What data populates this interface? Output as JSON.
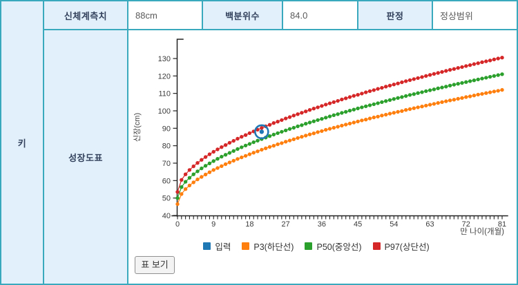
{
  "table": {
    "row_label": "키",
    "chart_row_label": "성장도표",
    "cells": [
      {
        "header": "신체계측치",
        "value": "88cm"
      },
      {
        "header": "백분위수",
        "value": "84.0"
      },
      {
        "header": "판정",
        "value": "정상범위"
      }
    ]
  },
  "button_label": "표 보기",
  "colors": {
    "table_border": "#39a9bd",
    "header_cell_bg": "#e1f0fb",
    "input_blue": "#1f77b4",
    "p3_orange": "#ff7f0e",
    "p50_green": "#2ca02c",
    "p97_red": "#d62728",
    "axis": "#222222",
    "tick_label": "#3a3a3a"
  },
  "chart_data": {
    "type": "scatter",
    "title": "",
    "xlabel": "만 나이(개월)",
    "ylabel": "신장(cm)",
    "xlim": [
      0,
      81
    ],
    "ylim": [
      40,
      135
    ],
    "x_major_ticks": [
      0,
      9,
      18,
      27,
      36,
      45,
      54,
      63,
      72,
      81
    ],
    "y_ticks": [
      40,
      50,
      60,
      70,
      80,
      90,
      100,
      110,
      120,
      130
    ],
    "grid": false,
    "legend_position": "bottom",
    "x": [
      0,
      1,
      2,
      3,
      4,
      5,
      6,
      7,
      8,
      9,
      10,
      11,
      12,
      13,
      14,
      15,
      16,
      17,
      18,
      19,
      20,
      21,
      22,
      23,
      24,
      25,
      26,
      27,
      28,
      29,
      30,
      31,
      32,
      33,
      34,
      35,
      36,
      37,
      38,
      39,
      40,
      41,
      42,
      43,
      44,
      45,
      46,
      47,
      48,
      49,
      50,
      51,
      52,
      53,
      54,
      55,
      56,
      57,
      58,
      59,
      60,
      61,
      62,
      63,
      64,
      65,
      66,
      67,
      68,
      69,
      70,
      71,
      72,
      73,
      74,
      75,
      76,
      77,
      78,
      79,
      80,
      81
    ],
    "series": [
      {
        "name": "입력",
        "color": "#1f77b4",
        "point": {
          "x": 21,
          "y": 88
        }
      },
      {
        "name": "P3(하단선)",
        "color": "#ff7f0e",
        "values": [
          46.5,
          52.3,
          55.1,
          57.2,
          59.0,
          60.7,
          62.1,
          63.5,
          64.8,
          66.1,
          67.2,
          68.3,
          69.4,
          70.4,
          71.4,
          72.4,
          73.3,
          74.2,
          75.1,
          76.0,
          76.8,
          77.7,
          78.5,
          79.3,
          80.0,
          80.8,
          81.5,
          82.3,
          83.0,
          83.7,
          84.4,
          85.1,
          85.8,
          86.5,
          87.1,
          87.8,
          88.4,
          89.1,
          89.7,
          90.3,
          90.9,
          91.5,
          92.1,
          92.7,
          93.3,
          93.9,
          94.5,
          95.0,
          95.6,
          96.2,
          96.7,
          97.3,
          97.8,
          98.4,
          98.9,
          99.4,
          99.9,
          100.5,
          101.0,
          101.5,
          102.0,
          102.5,
          103.0,
          103.5,
          104.0,
          104.5,
          105.0,
          105.5,
          106.0,
          106.4,
          106.9,
          107.4,
          107.9,
          108.3,
          108.8,
          109.3,
          109.7,
          110.2,
          110.6,
          111.1,
          111.5,
          112.0
        ]
      },
      {
        "name": "P50(중앙선)",
        "color": "#2ca02c",
        "values": [
          50.0,
          56.3,
          59.3,
          61.6,
          63.6,
          65.3,
          67.0,
          68.5,
          69.9,
          71.2,
          72.5,
          73.7,
          74.8,
          75.9,
          77.0,
          78.1,
          79.1,
          80.1,
          81.0,
          82.0,
          82.9,
          83.8,
          84.7,
          85.5,
          86.4,
          87.2,
          88.0,
          88.8,
          89.6,
          90.3,
          91.1,
          91.8,
          92.6,
          93.3,
          94.0,
          94.7,
          95.4,
          96.1,
          96.8,
          97.5,
          98.1,
          98.8,
          99.4,
          100.1,
          100.7,
          101.4,
          102.0,
          102.6,
          103.2,
          103.8,
          104.4,
          105.0,
          105.6,
          106.2,
          106.8,
          107.4,
          107.9,
          108.5,
          109.1,
          109.6,
          110.2,
          110.7,
          111.3,
          111.8,
          112.3,
          112.9,
          113.4,
          113.9,
          114.5,
          115.0,
          115.5,
          116.0,
          116.5,
          117.0,
          117.5,
          118.0,
          118.5,
          119.0,
          119.5,
          120.0,
          120.5,
          121.0
        ]
      },
      {
        "name": "P97(상단선)",
        "color": "#d62728",
        "values": [
          53.5,
          60.4,
          63.6,
          66.1,
          68.2,
          70.1,
          71.9,
          73.5,
          75.1,
          76.5,
          77.9,
          79.2,
          80.4,
          81.7,
          82.8,
          84.0,
          85.1,
          86.1,
          87.2,
          88.2,
          89.2,
          90.2,
          91.1,
          92.0,
          93.0,
          93.8,
          94.7,
          95.6,
          96.4,
          97.3,
          98.1,
          98.9,
          99.7,
          100.5,
          101.3,
          102.0,
          102.8,
          103.6,
          104.3,
          105.0,
          105.7,
          106.5,
          107.2,
          107.9,
          108.6,
          109.2,
          109.9,
          110.6,
          111.3,
          111.9,
          112.6,
          113.2,
          113.9,
          114.5,
          115.1,
          115.7,
          116.4,
          117.0,
          117.6,
          118.2,
          118.8,
          119.4,
          120.0,
          120.6,
          121.2,
          121.7,
          122.3,
          122.9,
          123.5,
          124.0,
          124.6,
          125.1,
          125.7,
          126.2,
          126.8,
          127.3,
          127.9,
          128.4,
          128.9,
          129.5,
          130.0,
          130.5
        ]
      }
    ]
  }
}
